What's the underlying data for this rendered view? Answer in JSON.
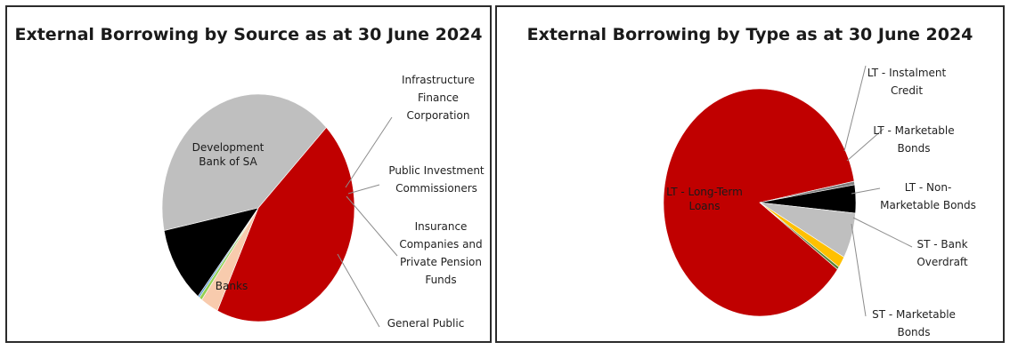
{
  "chart_data": [
    {
      "type": "pie",
      "title": "External Borrowing by Source as at 30 June 2024",
      "slices": [
        {
          "label": "Development Bank of SA",
          "value": 44.5,
          "color": "#c00000"
        },
        {
          "label": "Infrastructure Finance Corporation",
          "value": 3.0,
          "color": "#f8cbad"
        },
        {
          "label": "Public Investment Commissioners",
          "value": 0.5,
          "color": "#92d050"
        },
        {
          "label": "Insurance Companies and Private Pension Funds",
          "value": 0.3,
          "color": "#5b9bd5"
        },
        {
          "label": "General Public",
          "value": 11.0,
          "color": "#000000"
        },
        {
          "label": "Banks",
          "value": 40.7,
          "color": "#bfbfbf"
        }
      ],
      "labels": {
        "inside": [
          {
            "slice": 0,
            "lines": [
              "Development",
              "Bank of SA"
            ]
          },
          {
            "slice": 5,
            "lines": [
              "Banks"
            ]
          }
        ],
        "outside": [
          {
            "slice": 1,
            "lines": [
              "Infrastructure",
              "Finance",
              "Corporation"
            ]
          },
          {
            "slice": 2,
            "lines": [
              "Public Investment",
              "Commissioners"
            ]
          },
          {
            "slice": 3,
            "lines": [
              "Insurance",
              "Companies and",
              "Private Pension",
              "Funds"
            ]
          },
          {
            "slice": 4,
            "lines": [
              "General Public"
            ]
          }
        ]
      }
    },
    {
      "type": "pie",
      "title": "External Borrowing by Type as at 30 June 2024",
      "slices": [
        {
          "label": "LT - Long-Term Loans",
          "value": 87.0,
          "color": "#c00000"
        },
        {
          "label": "LT - Instalment Credit",
          "value": 0.5,
          "color": "#7f7f7f"
        },
        {
          "label": "LT - Marketable Bonds",
          "value": 4.0,
          "color": "#000000"
        },
        {
          "label": "LT - Non-Marketable Bonds",
          "value": 6.5,
          "color": "#bfbfbf"
        },
        {
          "label": "ST - Bank Overdraft",
          "value": 1.6,
          "color": "#ffc000"
        },
        {
          "label": "ST - Marketable Bonds",
          "value": 0.4,
          "color": "#548235"
        }
      ],
      "labels": {
        "inside": [
          {
            "slice": 0,
            "lines": [
              "LT - Long-Term",
              "Loans"
            ]
          }
        ],
        "outside": [
          {
            "slice": 1,
            "lines": [
              "LT - Instalment",
              "Credit"
            ]
          },
          {
            "slice": 2,
            "lines": [
              "LT - Marketable",
              "Bonds"
            ]
          },
          {
            "slice": 3,
            "lines": [
              "LT - Non-",
              "Marketable Bonds"
            ]
          },
          {
            "slice": 4,
            "lines": [
              "ST - Bank",
              "Overdraft"
            ]
          },
          {
            "slice": 5,
            "lines": [
              "ST - Marketable",
              "Bonds"
            ]
          }
        ]
      }
    }
  ]
}
